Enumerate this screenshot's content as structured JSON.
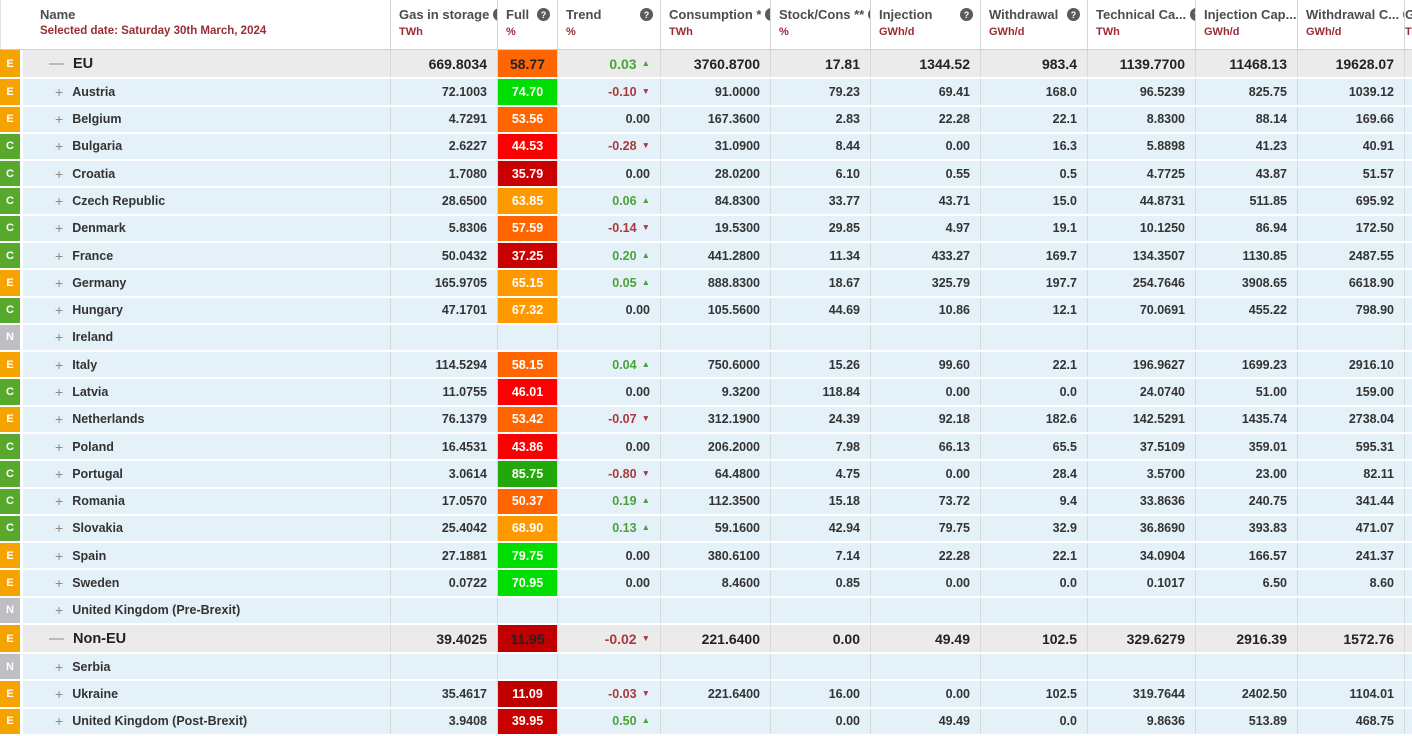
{
  "header": {
    "name_label": "Name",
    "selected_date": "Selected date: Saturday 30th March, 2024",
    "help_icon": "?",
    "columns": [
      {
        "label": "Gas in storage",
        "unit": "TWh"
      },
      {
        "label": "Full",
        "unit": "%"
      },
      {
        "label": "Trend",
        "unit": "%"
      },
      {
        "label": "Consumption *",
        "unit": "TWh"
      },
      {
        "label": "Stock/Cons **",
        "unit": "%"
      },
      {
        "label": "Injection",
        "unit": "GWh/d"
      },
      {
        "label": "Withdrawal",
        "unit": "GWh/d"
      },
      {
        "label": "Technical Ca...",
        "unit": "TWh"
      },
      {
        "label": "Injection Cap...",
        "unit": "GWh/d"
      },
      {
        "label": "Withdrawal C...",
        "unit": "GWh/d"
      }
    ],
    "clipped_column": {
      "label": "G",
      "unit": "T"
    }
  },
  "legend": {
    "badge_colors": {
      "E": "#f5a300",
      "C": "#57a82c",
      "N": "#bfbfc3"
    },
    "trend_up_color": "#48a338",
    "trend_down_color": "#ab393b"
  },
  "rows": [
    {
      "badge": "E",
      "name": "EU",
      "aggregate": true,
      "expand_icon": "minus",
      "gas": "669.8034",
      "full": "58.77",
      "full_color": "#ff6600",
      "trend": "0.03",
      "trend_dir": "up",
      "consumption": "3760.8700",
      "stock_cons": "17.81",
      "injection": "1344.52",
      "withdrawal": "983.4",
      "technical_capacity": "1139.7700",
      "injection_capacity": "11468.13",
      "withdrawal_capacity": "19628.07"
    },
    {
      "badge": "E",
      "name": "Austria",
      "aggregate": false,
      "expand_icon": "plus",
      "gas": "72.1003",
      "full": "74.70",
      "full_color": "#00dd00",
      "trend": "-0.10",
      "trend_dir": "down",
      "consumption": "91.0000",
      "stock_cons": "79.23",
      "injection": "69.41",
      "withdrawal": "168.0",
      "technical_capacity": "96.5239",
      "injection_capacity": "825.75",
      "withdrawal_capacity": "1039.12"
    },
    {
      "badge": "E",
      "name": "Belgium",
      "aggregate": false,
      "expand_icon": "plus",
      "gas": "4.7291",
      "full": "53.56",
      "full_color": "#ff6600",
      "trend": "0.00",
      "trend_dir": "none",
      "consumption": "167.3600",
      "stock_cons": "2.83",
      "injection": "22.28",
      "withdrawal": "22.1",
      "technical_capacity": "8.8300",
      "injection_capacity": "88.14",
      "withdrawal_capacity": "169.66"
    },
    {
      "badge": "C",
      "name": "Bulgaria",
      "aggregate": false,
      "expand_icon": "plus",
      "gas": "2.6227",
      "full": "44.53",
      "full_color": "#fb0000",
      "trend": "-0.28",
      "trend_dir": "down",
      "consumption": "31.0900",
      "stock_cons": "8.44",
      "injection": "0.00",
      "withdrawal": "16.3",
      "technical_capacity": "5.8898",
      "injection_capacity": "41.23",
      "withdrawal_capacity": "40.91"
    },
    {
      "badge": "C",
      "name": "Croatia",
      "aggregate": false,
      "expand_icon": "plus",
      "gas": "1.7080",
      "full": "35.79",
      "full_color": "#c90000",
      "trend": "0.00",
      "trend_dir": "none",
      "consumption": "28.0200",
      "stock_cons": "6.10",
      "injection": "0.55",
      "withdrawal": "0.5",
      "technical_capacity": "4.7725",
      "injection_capacity": "43.87",
      "withdrawal_capacity": "51.57"
    },
    {
      "badge": "C",
      "name": "Czech Republic",
      "aggregate": false,
      "expand_icon": "plus",
      "gas": "28.6500",
      "full": "63.85",
      "full_color": "#fe9900",
      "trend": "0.06",
      "trend_dir": "up",
      "consumption": "84.8300",
      "stock_cons": "33.77",
      "injection": "43.71",
      "withdrawal": "15.0",
      "technical_capacity": "44.8731",
      "injection_capacity": "511.85",
      "withdrawal_capacity": "695.92"
    },
    {
      "badge": "C",
      "name": "Denmark",
      "aggregate": false,
      "expand_icon": "plus",
      "gas": "5.8306",
      "full": "57.59",
      "full_color": "#ff6600",
      "trend": "-0.14",
      "trend_dir": "down",
      "consumption": "19.5300",
      "stock_cons": "29.85",
      "injection": "4.97",
      "withdrawal": "19.1",
      "technical_capacity": "10.1250",
      "injection_capacity": "86.94",
      "withdrawal_capacity": "172.50"
    },
    {
      "badge": "C",
      "name": "France",
      "aggregate": false,
      "expand_icon": "plus",
      "gas": "50.0432",
      "full": "37.25",
      "full_color": "#c90000",
      "trend": "0.20",
      "trend_dir": "up",
      "consumption": "441.2800",
      "stock_cons": "11.34",
      "injection": "433.27",
      "withdrawal": "169.7",
      "technical_capacity": "134.3507",
      "injection_capacity": "1130.85",
      "withdrawal_capacity": "2487.55"
    },
    {
      "badge": "E",
      "name": "Germany",
      "aggregate": false,
      "expand_icon": "plus",
      "gas": "165.9705",
      "full": "65.15",
      "full_color": "#fe9900",
      "trend": "0.05",
      "trend_dir": "up",
      "consumption": "888.8300",
      "stock_cons": "18.67",
      "injection": "325.79",
      "withdrawal": "197.7",
      "technical_capacity": "254.7646",
      "injection_capacity": "3908.65",
      "withdrawal_capacity": "6618.90"
    },
    {
      "badge": "C",
      "name": "Hungary",
      "aggregate": false,
      "expand_icon": "plus",
      "gas": "47.1701",
      "full": "67.32",
      "full_color": "#fe9900",
      "trend": "0.00",
      "trend_dir": "none",
      "consumption": "105.5600",
      "stock_cons": "44.69",
      "injection": "10.86",
      "withdrawal": "12.1",
      "technical_capacity": "70.0691",
      "injection_capacity": "455.22",
      "withdrawal_capacity": "798.90"
    },
    {
      "badge": "N",
      "name": "Ireland",
      "aggregate": false,
      "expand_icon": "plus",
      "gas": "",
      "full": "",
      "full_color": "",
      "trend": "",
      "trend_dir": "none",
      "consumption": "",
      "stock_cons": "",
      "injection": "",
      "withdrawal": "",
      "technical_capacity": "",
      "injection_capacity": "",
      "withdrawal_capacity": ""
    },
    {
      "badge": "E",
      "name": "Italy",
      "aggregate": false,
      "expand_icon": "plus",
      "gas": "114.5294",
      "full": "58.15",
      "full_color": "#ff6600",
      "trend": "0.04",
      "trend_dir": "up",
      "consumption": "750.6000",
      "stock_cons": "15.26",
      "injection": "99.60",
      "withdrawal": "22.1",
      "technical_capacity": "196.9627",
      "injection_capacity": "1699.23",
      "withdrawal_capacity": "2916.10"
    },
    {
      "badge": "C",
      "name": "Latvia",
      "aggregate": false,
      "expand_icon": "plus",
      "gas": "11.0755",
      "full": "46.01",
      "full_color": "#fb0000",
      "trend": "0.00",
      "trend_dir": "none",
      "consumption": "9.3200",
      "stock_cons": "118.84",
      "injection": "0.00",
      "withdrawal": "0.0",
      "technical_capacity": "24.0740",
      "injection_capacity": "51.00",
      "withdrawal_capacity": "159.00"
    },
    {
      "badge": "E",
      "name": "Netherlands",
      "aggregate": false,
      "expand_icon": "plus",
      "gas": "76.1379",
      "full": "53.42",
      "full_color": "#ff6600",
      "trend": "-0.07",
      "trend_dir": "down",
      "consumption": "312.1900",
      "stock_cons": "24.39",
      "injection": "92.18",
      "withdrawal": "182.6",
      "technical_capacity": "142.5291",
      "injection_capacity": "1435.74",
      "withdrawal_capacity": "2738.04"
    },
    {
      "badge": "C",
      "name": "Poland",
      "aggregate": false,
      "expand_icon": "plus",
      "gas": "16.4531",
      "full": "43.86",
      "full_color": "#fb0000",
      "trend": "0.00",
      "trend_dir": "none",
      "consumption": "206.2000",
      "stock_cons": "7.98",
      "injection": "66.13",
      "withdrawal": "65.5",
      "technical_capacity": "37.5109",
      "injection_capacity": "359.01",
      "withdrawal_capacity": "595.31"
    },
    {
      "badge": "C",
      "name": "Portugal",
      "aggregate": false,
      "expand_icon": "plus",
      "gas": "3.0614",
      "full": "85.75",
      "full_color": "#22a70d",
      "trend": "-0.80",
      "trend_dir": "down",
      "consumption": "64.4800",
      "stock_cons": "4.75",
      "injection": "0.00",
      "withdrawal": "28.4",
      "technical_capacity": "3.5700",
      "injection_capacity": "23.00",
      "withdrawal_capacity": "82.11"
    },
    {
      "badge": "C",
      "name": "Romania",
      "aggregate": false,
      "expand_icon": "plus",
      "gas": "17.0570",
      "full": "50.37",
      "full_color": "#ff6600",
      "trend": "0.19",
      "trend_dir": "up",
      "consumption": "112.3500",
      "stock_cons": "15.18",
      "injection": "73.72",
      "withdrawal": "9.4",
      "technical_capacity": "33.8636",
      "injection_capacity": "240.75",
      "withdrawal_capacity": "341.44"
    },
    {
      "badge": "C",
      "name": "Slovakia",
      "aggregate": false,
      "expand_icon": "plus",
      "gas": "25.4042",
      "full": "68.90",
      "full_color": "#fe9900",
      "trend": "0.13",
      "trend_dir": "up",
      "consumption": "59.1600",
      "stock_cons": "42.94",
      "injection": "79.75",
      "withdrawal": "32.9",
      "technical_capacity": "36.8690",
      "injection_capacity": "393.83",
      "withdrawal_capacity": "471.07"
    },
    {
      "badge": "E",
      "name": "Spain",
      "aggregate": false,
      "expand_icon": "plus",
      "gas": "27.1881",
      "full": "79.75",
      "full_color": "#00dd00",
      "trend": "0.00",
      "trend_dir": "none",
      "consumption": "380.6100",
      "stock_cons": "7.14",
      "injection": "22.28",
      "withdrawal": "22.1",
      "technical_capacity": "34.0904",
      "injection_capacity": "166.57",
      "withdrawal_capacity": "241.37"
    },
    {
      "badge": "E",
      "name": "Sweden",
      "aggregate": false,
      "expand_icon": "plus",
      "gas": "0.0722",
      "full": "70.95",
      "full_color": "#00dd00",
      "trend": "0.00",
      "trend_dir": "none",
      "consumption": "8.4600",
      "stock_cons": "0.85",
      "injection": "0.00",
      "withdrawal": "0.0",
      "technical_capacity": "0.1017",
      "injection_capacity": "6.50",
      "withdrawal_capacity": "8.60"
    },
    {
      "badge": "N",
      "name": "United Kingdom (Pre-Brexit)",
      "aggregate": false,
      "expand_icon": "plus",
      "gas": "",
      "full": "",
      "full_color": "",
      "trend": "",
      "trend_dir": "none",
      "consumption": "",
      "stock_cons": "",
      "injection": "",
      "withdrawal": "",
      "technical_capacity": "",
      "injection_capacity": "",
      "withdrawal_capacity": ""
    },
    {
      "badge": "E",
      "name": "Non-EU",
      "aggregate": true,
      "expand_icon": "minus",
      "gas": "39.4025",
      "full": "11.95",
      "full_color": "#c00000",
      "trend": "-0.02",
      "trend_dir": "down",
      "consumption": "221.6400",
      "stock_cons": "0.00",
      "injection": "49.49",
      "withdrawal": "102.5",
      "technical_capacity": "329.6279",
      "injection_capacity": "2916.39",
      "withdrawal_capacity": "1572.76"
    },
    {
      "badge": "N",
      "name": "Serbia",
      "aggregate": false,
      "expand_icon": "plus",
      "gas": "",
      "full": "",
      "full_color": "",
      "trend": "",
      "trend_dir": "none",
      "consumption": "",
      "stock_cons": "",
      "injection": "",
      "withdrawal": "",
      "technical_capacity": "",
      "injection_capacity": "",
      "withdrawal_capacity": ""
    },
    {
      "badge": "E",
      "name": "Ukraine",
      "aggregate": false,
      "expand_icon": "plus",
      "gas": "35.4617",
      "full": "11.09",
      "full_color": "#c00000",
      "trend": "-0.03",
      "trend_dir": "down",
      "consumption": "221.6400",
      "stock_cons": "16.00",
      "injection": "0.00",
      "withdrawal": "102.5",
      "technical_capacity": "319.7644",
      "injection_capacity": "2402.50",
      "withdrawal_capacity": "1104.01"
    },
    {
      "badge": "E",
      "name": "United Kingdom (Post-Brexit)",
      "aggregate": false,
      "expand_icon": "plus",
      "gas": "3.9408",
      "full": "39.95",
      "full_color": "#c90000",
      "trend": "0.50",
      "trend_dir": "up",
      "consumption": "",
      "stock_cons": "0.00",
      "injection": "49.49",
      "withdrawal": "0.0",
      "technical_capacity": "9.8636",
      "injection_capacity": "513.89",
      "withdrawal_capacity": "468.75"
    }
  ]
}
